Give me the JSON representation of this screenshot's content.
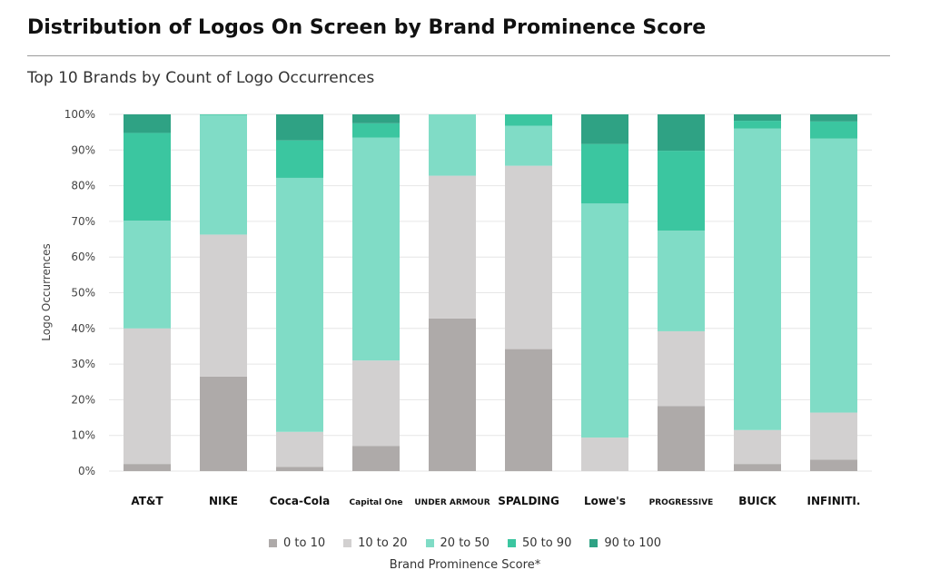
{
  "header": {
    "title": "Distribution of Logos On Screen by Brand Prominence Score",
    "subtitle": "Top 10 Brands by Count of Logo Occurrences"
  },
  "chart_data": {
    "type": "bar",
    "stacked": true,
    "title": "Distribution of Logos On Screen by Brand Prominence Score",
    "subtitle": "Top 10 Brands by Count of Logo Occurrences",
    "xlabel": "Brand Prominence Score*",
    "ylabel": "Logo Occurrences",
    "ylim": [
      0,
      100
    ],
    "yticks": [
      0,
      10,
      20,
      30,
      40,
      50,
      60,
      70,
      80,
      90,
      100
    ],
    "ytick_suffix": "%",
    "grid": true,
    "legend_position": "bottom",
    "categories": [
      "AT&T",
      "NIKE",
      "Coca-Cola",
      "Capital One",
      "UNDER ARMOUR",
      "SPALDING",
      "Lowe's",
      "PROGRESSIVE",
      "BUICK",
      "INFINITI."
    ],
    "series": [
      {
        "name": "0 to 10",
        "color": "#aeaaa9",
        "values": [
          2,
          26.5,
          1.2,
          7,
          42.8,
          34.2,
          0,
          18.2,
          2,
          3.2
        ]
      },
      {
        "name": "10 to 20",
        "color": "#d2d0d0",
        "values": [
          38,
          39.8,
          9.8,
          24,
          40,
          51.4,
          9.4,
          21,
          9.5,
          13.2
        ]
      },
      {
        "name": "20 to 50",
        "color": "#80dcc6",
        "values": [
          30.2,
          33.5,
          71.2,
          62.5,
          17.2,
          11.2,
          65.6,
          28.2,
          84.5,
          76.8
        ]
      },
      {
        "name": "50 to 90",
        "color": "#3bc6a0",
        "values": [
          24.6,
          0.2,
          10.5,
          4,
          0,
          3.2,
          16.7,
          22.4,
          2.2,
          4.8
        ]
      },
      {
        "name": "90 to 100",
        "color": "#2fa284",
        "values": [
          5.2,
          0,
          7.3,
          2.5,
          0,
          0,
          8.3,
          10.2,
          1.8,
          2
        ]
      }
    ]
  }
}
